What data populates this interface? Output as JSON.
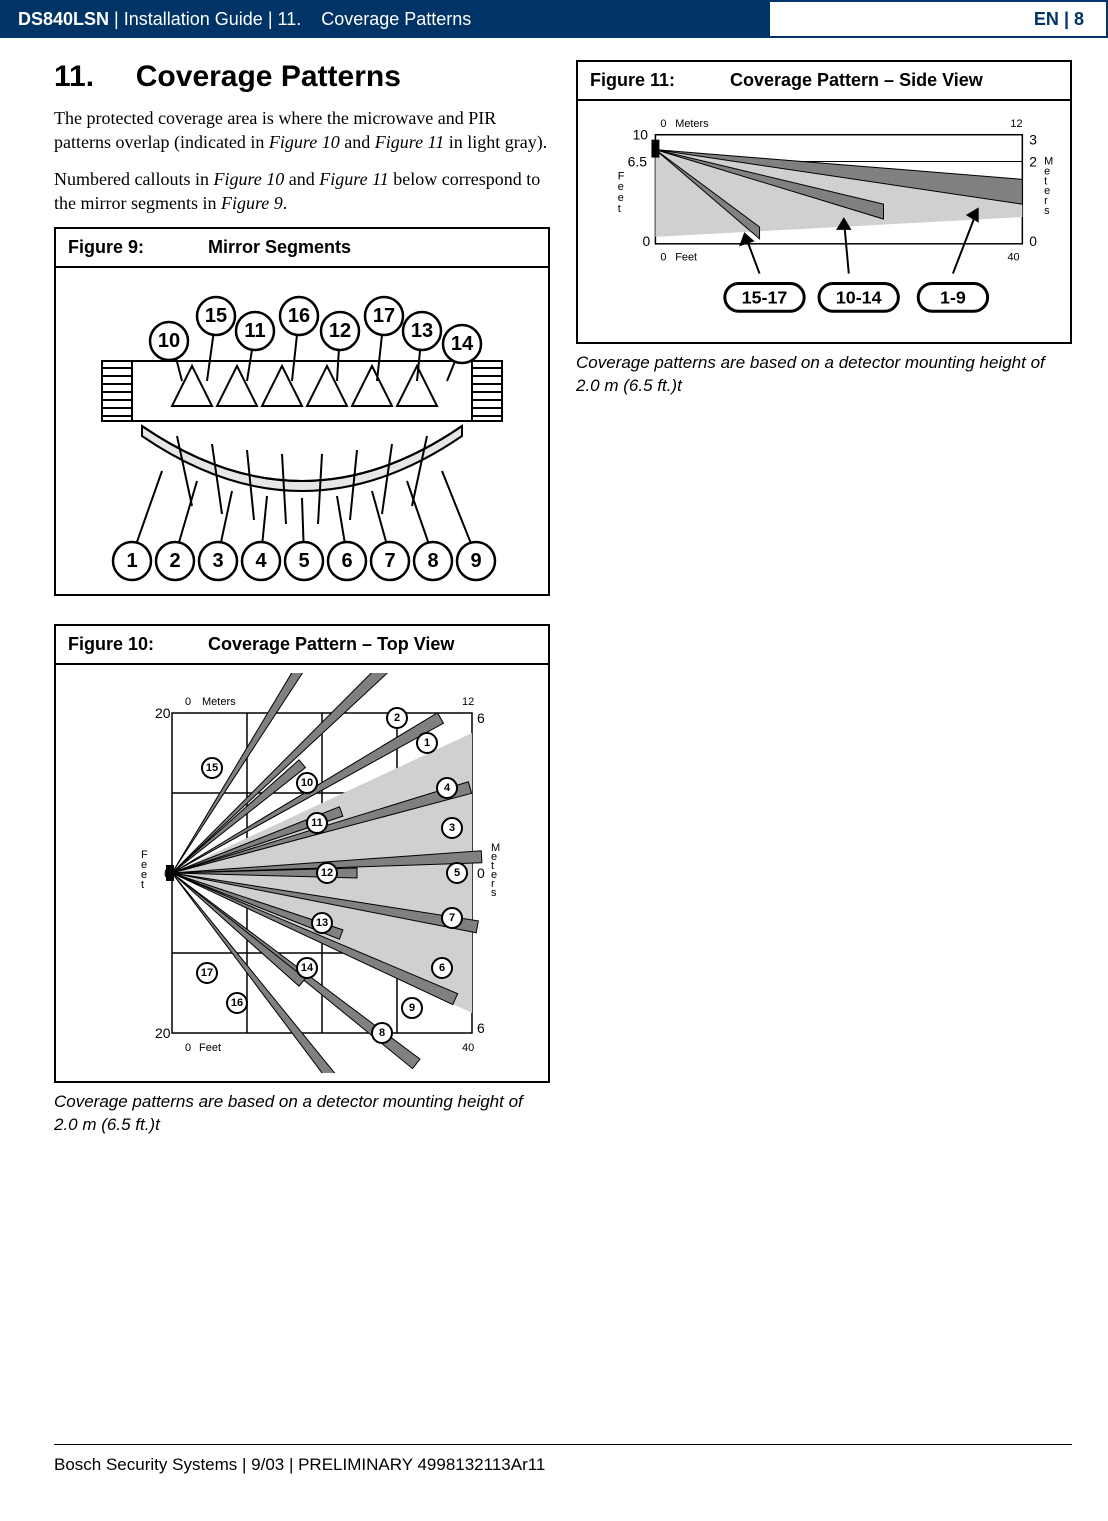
{
  "header": {
    "product": "DS840LSN",
    "doc": "Installation Guide",
    "section_num": "11.",
    "section_title": "Coverage Patterns",
    "lang": "EN",
    "page": "8"
  },
  "section": {
    "number": "11.",
    "title": "Coverage Patterns",
    "para1_a": "The protected coverage area is where the microwave and PIR patterns overlap (indicated in ",
    "para1_fig10": "Figure 10",
    "para1_and": " and ",
    "para1_fig11": "Figure 11",
    "para1_b": " in light gray).",
    "para2_a": "Numbered callouts in ",
    "para2_fig10": "Figure 10",
    "para2_and": " and ",
    "para2_fig11": "Figure 11",
    "para2_b": " below correspond to the mirror segments in ",
    "para2_fig9": "Figure 9",
    "para2_c": "."
  },
  "figures": {
    "fig9": {
      "label": "Figure 9:",
      "title": "Mirror Segments",
      "top_callouts": [
        "15",
        "11",
        "16",
        "12",
        "17",
        "13",
        "14",
        "10"
      ],
      "bottom_callouts": [
        "1",
        "2",
        "3",
        "4",
        "5",
        "6",
        "7",
        "8",
        "9"
      ],
      "diagram": {
        "type": "infographic",
        "top_circle_r": 19,
        "bottom_circle_r": 19,
        "stroke": "#000000",
        "fill_bg": "#ffffff",
        "fill_shade": "#e6e6e6",
        "font_size_callout": 20
      }
    },
    "fig10": {
      "label": "Figure 10:",
      "title": "Coverage Pattern – Top View",
      "caption": "Coverage patterns are based on a detector mounting height of 2.0 m (6.5 ft.)t",
      "diagram": {
        "type": "infographic",
        "feet_label": "Feet",
        "meters_label": "Meters",
        "feet_ticks_y": [
          "20",
          "0",
          "20"
        ],
        "meters_ticks_y": [
          "6",
          "0",
          "6"
        ],
        "x_meters": [
          "0",
          "12"
        ],
        "x_feet": [
          "0",
          "40"
        ],
        "f_vert": "Feet",
        "m_vert": "Meters",
        "callouts_outer": [
          "1",
          "2",
          "3",
          "4",
          "5",
          "6",
          "7",
          "8",
          "9"
        ],
        "callouts_inner": [
          "10",
          "11",
          "12",
          "13",
          "14",
          "15",
          "16",
          "17"
        ],
        "colors": {
          "grid": "#000000",
          "beam_fill": "#808080",
          "beam_stroke": "#000000",
          "overlap": "#d0d0d0",
          "circle_fill": "#ffffff"
        },
        "circle_r_small": 10,
        "font_size_small": 11
      }
    },
    "fig11": {
      "label": "Figure 11:",
      "title": "Coverage Pattern – Side View",
      "caption": "Coverage patterns are based on a detector mounting height of 2.0 m (6.5 ft.)t",
      "diagram": {
        "type": "infographic",
        "feet_label": "Feet",
        "meters_label": "Meters",
        "feet_ticks_y": [
          "10",
          "6.5",
          "0"
        ],
        "meters_ticks_y": [
          "3",
          "2",
          "0"
        ],
        "x_meters": [
          "0",
          "12"
        ],
        "x_feet": [
          "0",
          "40"
        ],
        "f_vert": "Feet",
        "m_vert": "Meters",
        "group_labels": [
          "15-17",
          "10-14",
          "1-9"
        ],
        "colors": {
          "grid": "#000000",
          "beam_fill": "#808080",
          "overlap": "#d0d0d0",
          "circle_fill": "#ffffff"
        },
        "pill_font_size": 18,
        "pill_height": 28,
        "pill_stroke_width": 3
      }
    }
  },
  "footer": {
    "text": "Bosch Security Systems | 9/03 | PRELIMINARY 4998132113Ar11"
  }
}
